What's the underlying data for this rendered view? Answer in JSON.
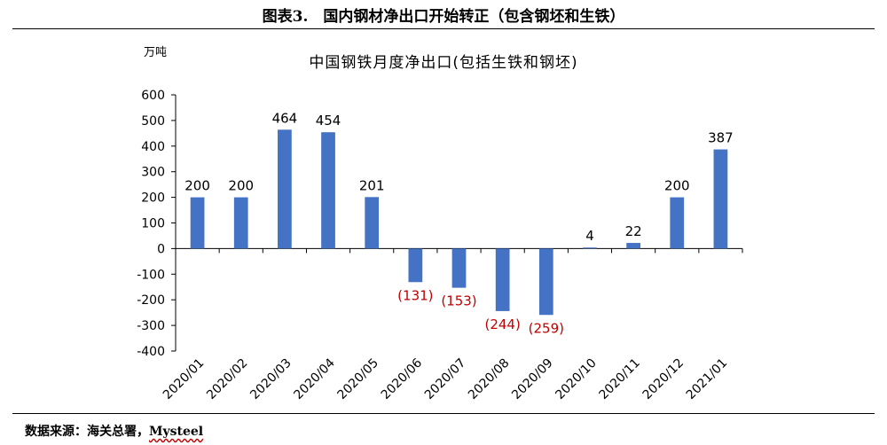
{
  "figure": {
    "title": "图表3.　国内钢材净出口开始转正（包含钢坯和生铁）",
    "unit": "万吨",
    "source_prefix": "数据来源：海关总署，",
    "source_brand": "Mysteel"
  },
  "colors": {
    "bar": "#4472C4",
    "positive_label": "#000000",
    "negative_label": "#C00000",
    "axis": "#000000"
  },
  "chart_data": {
    "type": "bar",
    "title": "中国钢铁月度净出口(包括生铁和钢坯)",
    "ylabel": "万吨",
    "xlabel": "",
    "ylim": [
      -400,
      600
    ],
    "yticks": [
      600,
      500,
      400,
      300,
      200,
      100,
      0,
      -100,
      -200,
      -300,
      -400
    ],
    "grid": false,
    "legend": "none",
    "categories": [
      "2020/01",
      "2020/02",
      "2020/03",
      "2020/04",
      "2020/05",
      "2020/06",
      "2020/07",
      "2020/08",
      "2020/09",
      "2020/10",
      "2020/11",
      "2020/12",
      "2021/01"
    ],
    "values": [
      200,
      200,
      464,
      454,
      201,
      -131,
      -153,
      -244,
      -259,
      4,
      22,
      200,
      387
    ],
    "data_labels": [
      "200",
      "200",
      "464",
      "454",
      "201",
      "(131)",
      "(153)",
      "(244)",
      "(259)",
      "4",
      "22",
      "200",
      "387"
    ]
  }
}
